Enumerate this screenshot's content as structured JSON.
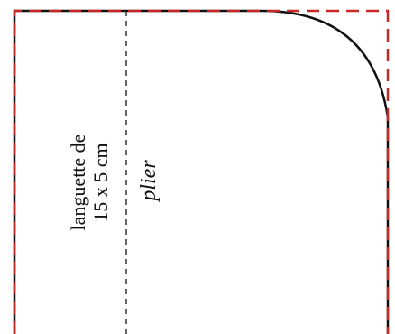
{
  "labels": {
    "tab_line1": "languette de",
    "tab_line2": "15 x 5 cm",
    "fold": "plier"
  },
  "colors": {
    "cut_line": "#c62828",
    "outline": "#111111",
    "fold_line": "#222222",
    "background": "#ffffff"
  }
}
